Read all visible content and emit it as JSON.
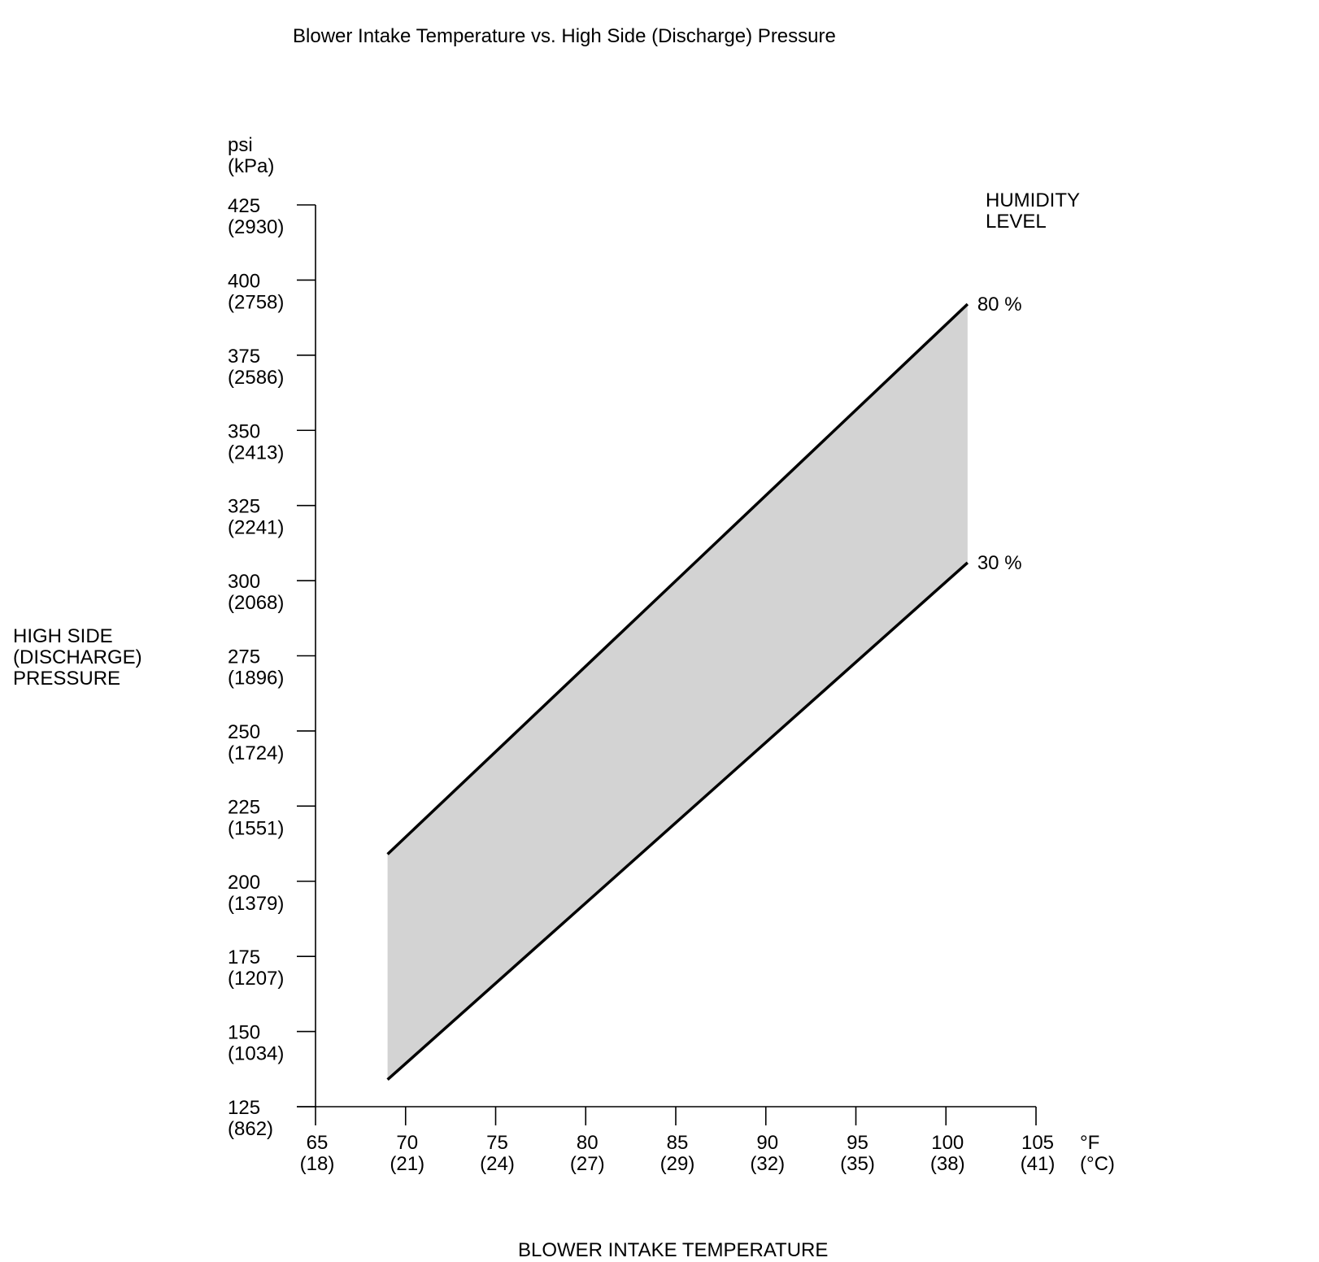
{
  "chart_data": {
    "type": "area",
    "title": "Blower Intake Temperature vs. High Side (Discharge) Pressure",
    "xlabel": "BLOWER INTAKE TEMPERATURE",
    "ylabel_lines": [
      "HIGH SIDE",
      "(DISCHARGE)",
      "PRESSURE"
    ],
    "y_unit_lines": [
      "psi",
      "(kPa)"
    ],
    "x_unit_lines": [
      "°F",
      "(°C)"
    ],
    "xlim": [
      65,
      105
    ],
    "ylim": [
      125,
      425
    ],
    "x_ticks": [
      {
        "value": 65,
        "label": "65",
        "sub": "(18)"
      },
      {
        "value": 70,
        "label": "70",
        "sub": "(21)"
      },
      {
        "value": 75,
        "label": "75",
        "sub": "(24)"
      },
      {
        "value": 80,
        "label": "80",
        "sub": "(27)"
      },
      {
        "value": 85,
        "label": "85",
        "sub": "(29)"
      },
      {
        "value": 90,
        "label": "90",
        "sub": "(32)"
      },
      {
        "value": 95,
        "label": "95",
        "sub": "(35)"
      },
      {
        "value": 100,
        "label": "100",
        "sub": "(38)"
      },
      {
        "value": 105,
        "label": "105",
        "sub": "(41)"
      }
    ],
    "y_ticks": [
      {
        "value": 125,
        "label": "125",
        "sub": "(862)"
      },
      {
        "value": 150,
        "label": "150",
        "sub": "(1034)"
      },
      {
        "value": 175,
        "label": "175",
        "sub": "(1207)"
      },
      {
        "value": 200,
        "label": "200",
        "sub": "(1379)"
      },
      {
        "value": 225,
        "label": "225",
        "sub": "(1551)"
      },
      {
        "value": 250,
        "label": "250",
        "sub": "(1724)"
      },
      {
        "value": 275,
        "label": "275",
        "sub": "(1896)"
      },
      {
        "value": 300,
        "label": "300",
        "sub": "(2068)"
      },
      {
        "value": 325,
        "label": "325",
        "sub": "(2241)"
      },
      {
        "value": 350,
        "label": "350",
        "sub": "(2413)"
      },
      {
        "value": 375,
        "label": "375",
        "sub": "(2586)"
      },
      {
        "value": 400,
        "label": "400",
        "sub": "(2758)"
      },
      {
        "value": 425,
        "label": "425",
        "sub": "(2930)"
      }
    ],
    "legend_title_lines": [
      "HUMIDITY",
      "LEVEL"
    ],
    "series": [
      {
        "name": "80 %",
        "x": [
          69,
          101.2
        ],
        "y": [
          209,
          392
        ]
      },
      {
        "name": "30 %",
        "x": [
          69,
          101.2
        ],
        "y": [
          134,
          306
        ]
      }
    ],
    "band_fill": "#d3d3d3",
    "line_color": "#000000",
    "grid": false
  }
}
